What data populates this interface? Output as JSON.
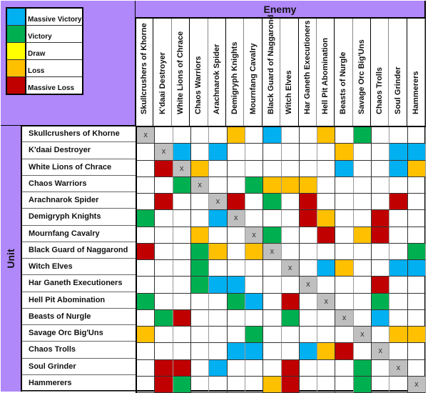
{
  "legend": [
    {
      "code": "B",
      "label": "Massive Victory",
      "color": "#00b0f0"
    },
    {
      "code": "G",
      "label": "Victory",
      "color": "#00b050"
    },
    {
      "code": "Y",
      "label": "Draw",
      "color": "#ffff00"
    },
    {
      "code": "O",
      "label": "Loss",
      "color": "#ffc000"
    },
    {
      "code": "R",
      "label": "Massive Loss",
      "color": "#c00000"
    }
  ],
  "self_cell": {
    "label": "x",
    "color": "#bfbfbf"
  },
  "header": {
    "enemy_label": "Enemy",
    "unit_label": "Unit"
  },
  "colors": {
    "header_purple": "#b088f9"
  },
  "units": [
    "Skullcrushers of Khorne",
    "K'daai Destroyer",
    "White Lions of Chrace",
    "Chaos Warriors",
    "Arachnarok Spider",
    "Demigryph Knights",
    "Mournfang Cavalry",
    "Black Guard of Naggarond",
    "Witch Elves",
    "Har Ganeth Executioners",
    "Hell Pit Abomination",
    "Beasts of Nurgle",
    "Savage Orc Big'Uns",
    "Chaos Trolls",
    "Soul Grinder",
    "Hammerers"
  ],
  "matrix": [
    [
      "X",
      "",
      "",
      "",
      "",
      "O",
      "",
      "B",
      "",
      "",
      "O",
      "",
      "G",
      "",
      "",
      ""
    ],
    [
      "",
      "X",
      "B",
      "",
      "B",
      "",
      "",
      "",
      "",
      "",
      "",
      "O",
      "",
      "",
      "B",
      "B"
    ],
    [
      "",
      "R",
      "X",
      "O",
      "",
      "",
      "",
      "",
      "",
      "",
      "",
      "B",
      "",
      "",
      "B",
      "O"
    ],
    [
      "",
      "",
      "G",
      "X",
      "",
      "",
      "G",
      "O",
      "O",
      "O",
      "",
      "",
      "",
      "",
      "",
      ""
    ],
    [
      "",
      "R",
      "",
      "",
      "X",
      "R",
      "",
      "G",
      "",
      "R",
      "",
      "",
      "",
      "",
      "R",
      ""
    ],
    [
      "G",
      "",
      "",
      "",
      "B",
      "X",
      "",
      "",
      "",
      "R",
      "O",
      "",
      "",
      "R",
      "",
      ""
    ],
    [
      "",
      "",
      "",
      "O",
      "",
      "",
      "X",
      "G",
      "",
      "",
      "R",
      "",
      "O",
      "R",
      "",
      ""
    ],
    [
      "R",
      "",
      "",
      "G",
      "O",
      "",
      "O",
      "X",
      "",
      "",
      "",
      "",
      "",
      "",
      "",
      "G"
    ],
    [
      "",
      "",
      "",
      "G",
      "",
      "",
      "",
      "",
      "X",
      "",
      "B",
      "O",
      "",
      "",
      "B",
      "B"
    ],
    [
      "",
      "",
      "",
      "G",
      "B",
      "B",
      "",
      "",
      "",
      "X",
      "",
      "",
      "",
      "R",
      "",
      ""
    ],
    [
      "G",
      "",
      "",
      "",
      "",
      "G",
      "B",
      "",
      "R",
      "",
      "X",
      "",
      "",
      "G",
      "",
      ""
    ],
    [
      "",
      "G",
      "R",
      "",
      "",
      "",
      "",
      "",
      "G",
      "",
      "",
      "X",
      "",
      "B",
      "",
      ""
    ],
    [
      "O",
      "",
      "",
      "",
      "",
      "",
      "G",
      "",
      "",
      "",
      "",
      "",
      "X",
      "",
      "O",
      "O"
    ],
    [
      "",
      "",
      "",
      "",
      "",
      "B",
      "B",
      "",
      "",
      "B",
      "O",
      "R",
      "",
      "X",
      "",
      ""
    ],
    [
      "",
      "R",
      "R",
      "",
      "B",
      "",
      "",
      "",
      "R",
      "",
      "",
      "",
      "G",
      "",
      "X",
      ""
    ],
    [
      "",
      "R",
      "G",
      "",
      "",
      "",
      "",
      "O",
      "R",
      "",
      "",
      "",
      "G",
      "",
      "",
      "X"
    ]
  ]
}
